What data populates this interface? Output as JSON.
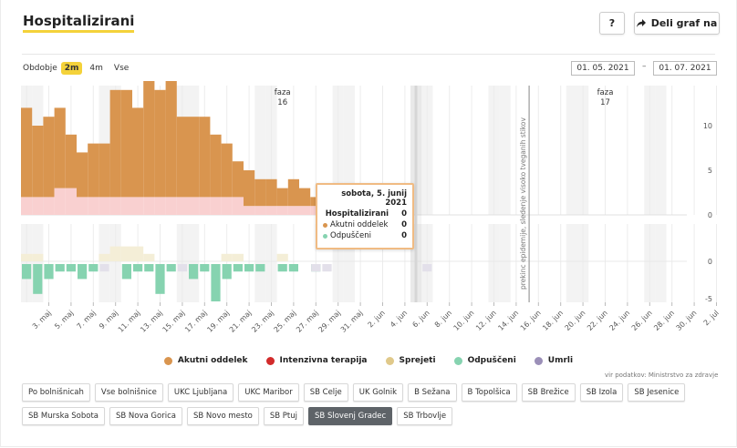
{
  "header": {
    "title": "Hospitalizirani",
    "help_label": "?",
    "share_label": "Deli graf na"
  },
  "period": {
    "label": "Obdobje",
    "options": [
      "2m",
      "4m",
      "Vse"
    ],
    "selected": "2m"
  },
  "date_range": {
    "from": "01. 05. 2021",
    "separator": "–",
    "to": "01. 07. 2021"
  },
  "tooltip": {
    "title": "sobota, 5. junij 2021",
    "rows": [
      {
        "label": "Hospitalizirani",
        "value": "0",
        "color": ""
      },
      {
        "label": "Akutni oddelek",
        "value": "0",
        "color": "#d9954f"
      },
      {
        "label": "Odpuščeni",
        "value": "0",
        "color": "#86d3b0"
      }
    ]
  },
  "legend": [
    {
      "label": "Akutni oddelek",
      "color": "#d9954f"
    },
    {
      "label": "Intenzivna terapija",
      "color": "#d22b2b"
    },
    {
      "label": "Sprejeti",
      "color": "#e0c98a"
    },
    {
      "label": "Odpuščeni",
      "color": "#86d3b0"
    },
    {
      "label": "Umrli",
      "color": "#9b8fb8"
    }
  ],
  "source": "vir podatkov: Ministrstvo za zdravje",
  "filters": {
    "row1": [
      "Po bolnišnicah",
      "Vse bolnišnice",
      "UKC Ljubljana",
      "UKC Maribor",
      "SB Celje",
      "UK Golnik",
      "B Sežana",
      "B Topolšica",
      "SB Brežice",
      "SB Izola",
      "SB Jesenice"
    ],
    "row2": [
      "SB Murska Sobota",
      "SB Nova Gorica",
      "SB Novo mesto",
      "SB Ptuj",
      "SB Slovenj Gradec",
      "SB Trbovlje"
    ],
    "selected": "SB Slovenj Gradec"
  },
  "chart_data": {
    "type": "bar",
    "x": [
      "1. maj",
      "2. maj",
      "3. maj",
      "4. maj",
      "5. maj",
      "6. maj",
      "7. maj",
      "8. maj",
      "9. maj",
      "10. maj",
      "11. maj",
      "12. maj",
      "13. maj",
      "14. maj",
      "15. maj",
      "16. maj",
      "17. maj",
      "18. maj",
      "19. maj",
      "20. maj",
      "21. maj",
      "22. maj",
      "23. maj",
      "24. maj",
      "25. maj",
      "26. maj",
      "27. maj",
      "28. maj",
      "29. maj",
      "30. maj",
      "31. maj",
      "1. jun",
      "2. jun",
      "3. jun",
      "4. jun",
      "5. jun",
      "6. jun",
      "7. jun",
      "8. jun",
      "9. jun",
      "10. jun",
      "11. jun",
      "12. jun",
      "13. jun",
      "14. jun",
      "15. jun",
      "16. jun",
      "17. jun",
      "18. jun",
      "19. jun",
      "20. jun",
      "21. jun",
      "22. jun",
      "23. jun",
      "24. jun",
      "25. jun",
      "26. jun",
      "27. jun",
      "28. jun",
      "29. jun",
      "30. jun",
      "1. jul"
    ],
    "x_tick_labels": [
      "3. maj",
      "5. maj",
      "7. maj",
      "9. maj",
      "11. maj",
      "13. maj",
      "15. maj",
      "17. maj",
      "19. maj",
      "21. maj",
      "23. maj",
      "25. maj",
      "27. maj",
      "29. maj",
      "31. maj",
      "2. jun",
      "4. jun",
      "6. jun",
      "8. jun",
      "10. jun",
      "12. jun",
      "14. jun",
      "16. jun",
      "18. jun",
      "20. jun",
      "22. jun",
      "24. jun",
      "26. jun",
      "28. jun",
      "30. jun",
      "2. jul"
    ],
    "top_series": [
      {
        "name": "Akutni oddelek",
        "values": [
          10,
          8,
          9,
          9,
          6,
          5,
          6,
          6,
          12,
          12,
          10,
          13,
          12,
          13,
          9,
          9,
          9,
          7,
          6,
          4,
          4,
          3,
          3,
          2,
          3,
          2,
          1,
          0,
          0,
          0,
          0,
          0,
          0,
          0,
          0,
          0,
          0,
          0,
          0,
          0,
          0,
          0,
          0,
          0,
          0,
          0,
          0,
          0,
          0,
          0,
          0,
          0,
          0,
          0,
          0,
          0,
          0,
          0,
          0,
          0,
          0,
          0
        ]
      },
      {
        "name": "Intenzivna terapija",
        "values": [
          2,
          2,
          2,
          3,
          3,
          2,
          2,
          2,
          2,
          2,
          2,
          2,
          2,
          2,
          2,
          2,
          2,
          2,
          2,
          2,
          1,
          1,
          1,
          1,
          1,
          1,
          1,
          1,
          0,
          0,
          0,
          0,
          0,
          0,
          0,
          0,
          0,
          0,
          0,
          0,
          0,
          0,
          0,
          0,
          0,
          0,
          0,
          0,
          0,
          0,
          0,
          0,
          0,
          0,
          0,
          0,
          0,
          0,
          0,
          0,
          0,
          0
        ]
      }
    ],
    "top_yticks": [
      0,
      5,
      10
    ],
    "top_ylim": [
      0,
      15
    ],
    "bottom_series": [
      {
        "name": "Sprejeti",
        "values": [
          1,
          1,
          0,
          0,
          0,
          0,
          0,
          1,
          2,
          2,
          2,
          1,
          0,
          0,
          0,
          0,
          0,
          0,
          1,
          1,
          0,
          0,
          0,
          1,
          0,
          0,
          0,
          0,
          0,
          0,
          0,
          0,
          0,
          0,
          0,
          0,
          0,
          0,
          0,
          0,
          0,
          0,
          0,
          0,
          0,
          0,
          0,
          0,
          0,
          0,
          0,
          0,
          0,
          0,
          0,
          0,
          0,
          0,
          0,
          0,
          0,
          0
        ]
      },
      {
        "name": "Odpuščeni",
        "values": [
          -2,
          -4,
          -2,
          -1,
          -1,
          -2,
          -1,
          0,
          0,
          -2,
          -1,
          -1,
          -4,
          -1,
          0,
          -2,
          -1,
          -5,
          -2,
          -1,
          -1,
          -1,
          0,
          -1,
          -1,
          0,
          -1,
          0,
          0,
          0,
          0,
          0,
          0,
          0,
          0,
          0,
          0,
          0,
          0,
          0,
          0,
          0,
          0,
          0,
          0,
          0,
          0,
          0,
          0,
          0,
          0,
          0,
          0,
          0,
          0,
          0,
          0,
          0,
          0,
          0,
          0,
          0
        ]
      },
      {
        "name": "Umrli",
        "values": [
          0,
          0,
          0,
          0,
          0,
          0,
          0,
          -1,
          0,
          0,
          0,
          0,
          0,
          0,
          -1,
          0,
          0,
          0,
          0,
          0,
          0,
          0,
          0,
          0,
          0,
          0,
          -1,
          -1,
          0,
          0,
          0,
          0,
          0,
          0,
          0,
          0,
          -1,
          0,
          0,
          0,
          0,
          0,
          0,
          0,
          0,
          0,
          0,
          0,
          0,
          0,
          0,
          0,
          0,
          0,
          0,
          0,
          0,
          0,
          0,
          0,
          0,
          0
        ]
      }
    ],
    "bottom_yticks": [
      -5,
      0
    ],
    "bottom_ylim": [
      -6,
      3
    ],
    "annotations": [
      {
        "label": "faza 16",
        "x": "24. maj"
      },
      {
        "label": "prekinc epidemije, sledenje visoko tveganih stikov",
        "x": "15. jun"
      },
      {
        "label": "faza 17",
        "x": "22. jun"
      }
    ],
    "grid": true
  }
}
